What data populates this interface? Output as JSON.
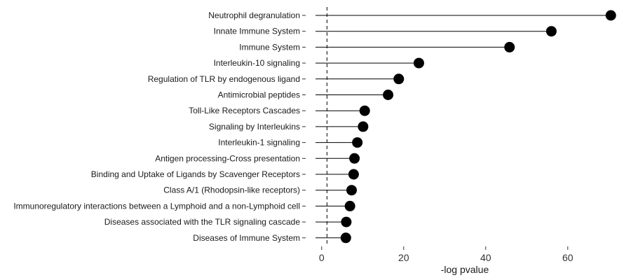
{
  "chart_data": {
    "type": "scatter",
    "style": "lollipop",
    "title": "",
    "xlabel": "-log pvalue",
    "ylabel": "",
    "xlim": [
      -1.5,
      72
    ],
    "x_ticks": [
      0,
      20,
      40,
      60
    ],
    "x_tick_labels": [
      "0",
      "20",
      "40",
      "60"
    ],
    "reference_line": {
      "x": 1.3,
      "style": "dashed"
    },
    "grid": false,
    "legend": "none",
    "marker_color": "#000000",
    "line_color": "#000000",
    "categories": [
      "Neutrophil degranulation",
      "Innate Immune System",
      "Immune System",
      "Interleukin-10 signaling",
      "Regulation of TLR by endogenous ligand",
      "Antimicrobial peptides",
      "Toll-Like Receptors Cascades",
      "Signaling by Interleukins",
      "Interleukin-1 signaling",
      "Antigen processing-Cross presentation",
      "Binding and Uptake of Ligands by Scavenger Receptors",
      "Class A/1 (Rhodopsin-like receptors)",
      "Immunoregulatory interactions between a Lymphoid and a non-Lymphoid cell",
      "Diseases associated with the TLR signaling cascade",
      "Diseases of Immune System"
    ],
    "values": [
      70.5,
      56.0,
      45.8,
      23.7,
      18.8,
      16.2,
      10.5,
      10.1,
      8.7,
      8.0,
      7.8,
      7.3,
      6.9,
      6.0,
      5.9
    ]
  }
}
